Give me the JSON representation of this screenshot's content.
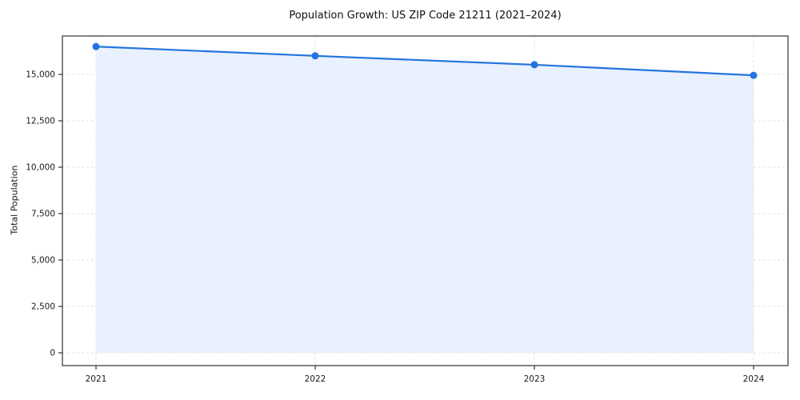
{
  "chart_data": {
    "type": "area",
    "title": "Population Growth: US ZIP Code 21211 (2021–2024)",
    "xlabel": "",
    "ylabel": "Total Population",
    "x": [
      2021,
      2022,
      2023,
      2024
    ],
    "series": [
      {
        "name": "Total Population",
        "values": [
          16500,
          16000,
          15520,
          14950
        ]
      }
    ],
    "yticks": [
      0,
      2500,
      5000,
      7500,
      10000,
      12500,
      15000
    ],
    "ylim": [
      0,
      17100
    ],
    "grid": "dashed-both",
    "legend": "none",
    "colors": {
      "line": "#2474dd",
      "marker": "#2474dd",
      "fill": "#e8f1fd",
      "grid": "#e2e2e2",
      "axis": "#333333",
      "text": "#1a1a1a"
    }
  }
}
